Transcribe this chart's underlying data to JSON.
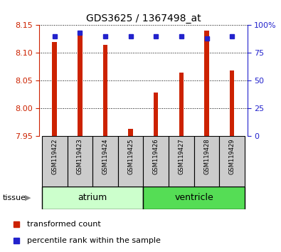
{
  "title": "GDS3625 / 1367498_at",
  "samples": [
    "GSM119422",
    "GSM119423",
    "GSM119424",
    "GSM119425",
    "GSM119426",
    "GSM119427",
    "GSM119428",
    "GSM119429"
  ],
  "red_values": [
    8.12,
    8.135,
    8.115,
    7.963,
    8.028,
    8.065,
    8.14,
    8.068
  ],
  "blue_values": [
    90,
    93,
    90,
    90,
    90,
    90,
    88,
    90
  ],
  "ymin": 7.95,
  "ymax": 8.15,
  "y2min": 0,
  "y2max": 100,
  "yticks": [
    7.95,
    8.0,
    8.05,
    8.1,
    8.15
  ],
  "y2ticks": [
    0,
    25,
    50,
    75,
    100
  ],
  "bar_color": "#cc2200",
  "dot_color": "#2222cc",
  "tissue_groups": [
    {
      "label": "atrium",
      "start": 0,
      "end": 3,
      "color": "#ccffcc",
      "edge_color": "#006600"
    },
    {
      "label": "ventricle",
      "start": 4,
      "end": 7,
      "color": "#55dd55",
      "edge_color": "#006600"
    }
  ],
  "tissue_label": "tissue",
  "legend_items": [
    "transformed count",
    "percentile rank within the sample"
  ],
  "bar_width": 0.18,
  "background_color": "#ffffff",
  "left_axis_color": "#cc2200",
  "right_axis_color": "#2222cc",
  "sample_box_color": "#cccccc",
  "figsize": [
    3.95,
    3.54
  ],
  "dpi": 100
}
